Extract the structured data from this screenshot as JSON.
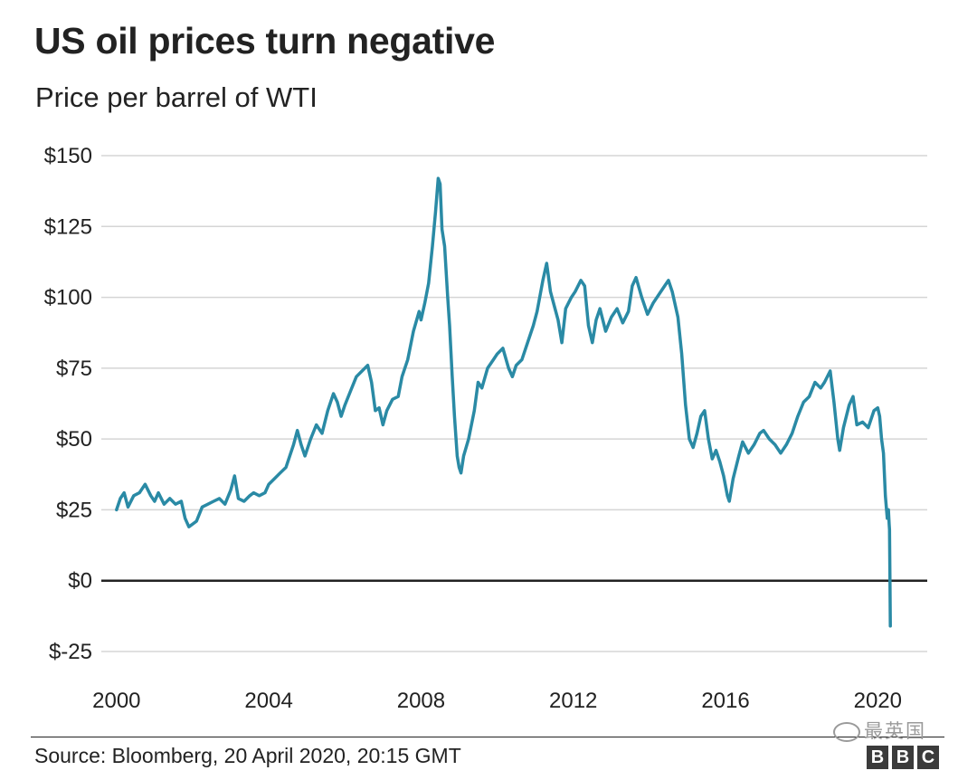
{
  "header": {
    "title": "US oil prices turn negative",
    "subtitle": "Price per barrel of WTI"
  },
  "footer": {
    "source": "Source: Bloomberg, 20 April 2020, 20:15 GMT",
    "watermark": "最英国",
    "logo_letters": [
      "B",
      "B",
      "C"
    ]
  },
  "colors": {
    "line": "#2a8aa5",
    "grid": "#d5d5d5",
    "zero_line": "#222222",
    "text": "#222222"
  },
  "chart_data": {
    "type": "line",
    "title": "US oil prices turn negative",
    "subtitle": "Price per barrel of WTI",
    "xlabel": "",
    "ylabel": "",
    "xlim": [
      1999.6,
      2021.3
    ],
    "ylim": [
      -25,
      150
    ],
    "y_ticks": [
      150,
      125,
      100,
      75,
      50,
      25,
      0,
      -25
    ],
    "y_tick_labels": [
      "$150",
      "$125",
      "$100",
      "$75",
      "$50",
      "$25",
      "$0",
      "$-25"
    ],
    "x_ticks": [
      2000,
      2004,
      2008,
      2012,
      2016,
      2020
    ],
    "x_tick_labels": [
      "2000",
      "2004",
      "2008",
      "2012",
      "2016",
      "2020"
    ],
    "grid": true,
    "series": [
      {
        "name": "WTI",
        "points": [
          [
            2000.0,
            25
          ],
          [
            2000.1,
            29
          ],
          [
            2000.2,
            31
          ],
          [
            2000.3,
            26
          ],
          [
            2000.45,
            30
          ],
          [
            2000.6,
            31
          ],
          [
            2000.75,
            34
          ],
          [
            2000.9,
            30
          ],
          [
            2001.0,
            28
          ],
          [
            2001.1,
            31
          ],
          [
            2001.25,
            27
          ],
          [
            2001.4,
            29
          ],
          [
            2001.55,
            27
          ],
          [
            2001.7,
            28
          ],
          [
            2001.8,
            22
          ],
          [
            2001.9,
            19
          ],
          [
            2002.0,
            20
          ],
          [
            2002.1,
            21
          ],
          [
            2002.25,
            26
          ],
          [
            2002.4,
            27
          ],
          [
            2002.55,
            28
          ],
          [
            2002.7,
            29
          ],
          [
            2002.85,
            27
          ],
          [
            2003.0,
            32
          ],
          [
            2003.1,
            37
          ],
          [
            2003.2,
            29
          ],
          [
            2003.35,
            28
          ],
          [
            2003.5,
            30
          ],
          [
            2003.6,
            31
          ],
          [
            2003.75,
            30
          ],
          [
            2003.9,
            31
          ],
          [
            2004.0,
            34
          ],
          [
            2004.15,
            36
          ],
          [
            2004.3,
            38
          ],
          [
            2004.45,
            40
          ],
          [
            2004.55,
            44
          ],
          [
            2004.65,
            48
          ],
          [
            2004.75,
            53
          ],
          [
            2004.85,
            48
          ],
          [
            2004.95,
            44
          ],
          [
            2005.1,
            50
          ],
          [
            2005.25,
            55
          ],
          [
            2005.4,
            52
          ],
          [
            2005.55,
            60
          ],
          [
            2005.7,
            66
          ],
          [
            2005.8,
            63
          ],
          [
            2005.9,
            58
          ],
          [
            2006.0,
            62
          ],
          [
            2006.15,
            67
          ],
          [
            2006.3,
            72
          ],
          [
            2006.45,
            74
          ],
          [
            2006.6,
            76
          ],
          [
            2006.7,
            70
          ],
          [
            2006.8,
            60
          ],
          [
            2006.9,
            61
          ],
          [
            2007.0,
            55
          ],
          [
            2007.1,
            60
          ],
          [
            2007.25,
            64
          ],
          [
            2007.4,
            65
          ],
          [
            2007.5,
            72
          ],
          [
            2007.65,
            78
          ],
          [
            2007.8,
            88
          ],
          [
            2007.95,
            95
          ],
          [
            2008.0,
            92
          ],
          [
            2008.1,
            98
          ],
          [
            2008.2,
            105
          ],
          [
            2008.3,
            118
          ],
          [
            2008.38,
            130
          ],
          [
            2008.45,
            142
          ],
          [
            2008.5,
            140
          ],
          [
            2008.55,
            124
          ],
          [
            2008.62,
            118
          ],
          [
            2008.7,
            100
          ],
          [
            2008.75,
            90
          ],
          [
            2008.82,
            72
          ],
          [
            2008.88,
            58
          ],
          [
            2008.95,
            44
          ],
          [
            2009.0,
            40
          ],
          [
            2009.05,
            38
          ],
          [
            2009.12,
            44
          ],
          [
            2009.25,
            50
          ],
          [
            2009.4,
            60
          ],
          [
            2009.5,
            70
          ],
          [
            2009.6,
            68
          ],
          [
            2009.75,
            75
          ],
          [
            2009.9,
            78
          ],
          [
            2010.0,
            80
          ],
          [
            2010.15,
            82
          ],
          [
            2010.3,
            75
          ],
          [
            2010.4,
            72
          ],
          [
            2010.5,
            76
          ],
          [
            2010.65,
            78
          ],
          [
            2010.8,
            84
          ],
          [
            2010.95,
            90
          ],
          [
            2011.05,
            95
          ],
          [
            2011.2,
            106
          ],
          [
            2011.3,
            112
          ],
          [
            2011.4,
            102
          ],
          [
            2011.5,
            97
          ],
          [
            2011.6,
            92
          ],
          [
            2011.7,
            84
          ],
          [
            2011.8,
            96
          ],
          [
            2011.95,
            100
          ],
          [
            2012.05,
            102
          ],
          [
            2012.2,
            106
          ],
          [
            2012.3,
            104
          ],
          [
            2012.4,
            90
          ],
          [
            2012.5,
            84
          ],
          [
            2012.6,
            92
          ],
          [
            2012.7,
            96
          ],
          [
            2012.85,
            88
          ],
          [
            2013.0,
            93
          ],
          [
            2013.15,
            96
          ],
          [
            2013.3,
            91
          ],
          [
            2013.45,
            95
          ],
          [
            2013.55,
            104
          ],
          [
            2013.65,
            107
          ],
          [
            2013.8,
            100
          ],
          [
            2013.95,
            94
          ],
          [
            2014.1,
            98
          ],
          [
            2014.25,
            101
          ],
          [
            2014.4,
            104
          ],
          [
            2014.5,
            106
          ],
          [
            2014.6,
            102
          ],
          [
            2014.75,
            93
          ],
          [
            2014.85,
            80
          ],
          [
            2014.95,
            62
          ],
          [
            2015.05,
            50
          ],
          [
            2015.15,
            47
          ],
          [
            2015.25,
            52
          ],
          [
            2015.35,
            58
          ],
          [
            2015.45,
            60
          ],
          [
            2015.55,
            50
          ],
          [
            2015.65,
            43
          ],
          [
            2015.75,
            46
          ],
          [
            2015.85,
            42
          ],
          [
            2015.95,
            37
          ],
          [
            2016.05,
            30
          ],
          [
            2016.1,
            28
          ],
          [
            2016.2,
            36
          ],
          [
            2016.35,
            44
          ],
          [
            2016.45,
            49
          ],
          [
            2016.6,
            45
          ],
          [
            2016.75,
            48
          ],
          [
            2016.9,
            52
          ],
          [
            2017.0,
            53
          ],
          [
            2017.15,
            50
          ],
          [
            2017.3,
            48
          ],
          [
            2017.45,
            45
          ],
          [
            2017.6,
            48
          ],
          [
            2017.75,
            52
          ],
          [
            2017.9,
            58
          ],
          [
            2018.05,
            63
          ],
          [
            2018.2,
            65
          ],
          [
            2018.35,
            70
          ],
          [
            2018.5,
            68
          ],
          [
            2018.6,
            70
          ],
          [
            2018.75,
            74
          ],
          [
            2018.85,
            63
          ],
          [
            2018.95,
            50
          ],
          [
            2019.0,
            46
          ],
          [
            2019.1,
            54
          ],
          [
            2019.25,
            62
          ],
          [
            2019.35,
            65
          ],
          [
            2019.45,
            55
          ],
          [
            2019.6,
            56
          ],
          [
            2019.75,
            54
          ],
          [
            2019.9,
            60
          ],
          [
            2020.0,
            61
          ],
          [
            2020.05,
            58
          ],
          [
            2020.1,
            50
          ],
          [
            2020.15,
            45
          ],
          [
            2020.2,
            30
          ],
          [
            2020.25,
            22
          ],
          [
            2020.28,
            25
          ],
          [
            2020.3,
            20
          ],
          [
            2020.31,
            18
          ],
          [
            2020.32,
            0
          ],
          [
            2020.33,
            -16
          ]
        ]
      }
    ]
  }
}
